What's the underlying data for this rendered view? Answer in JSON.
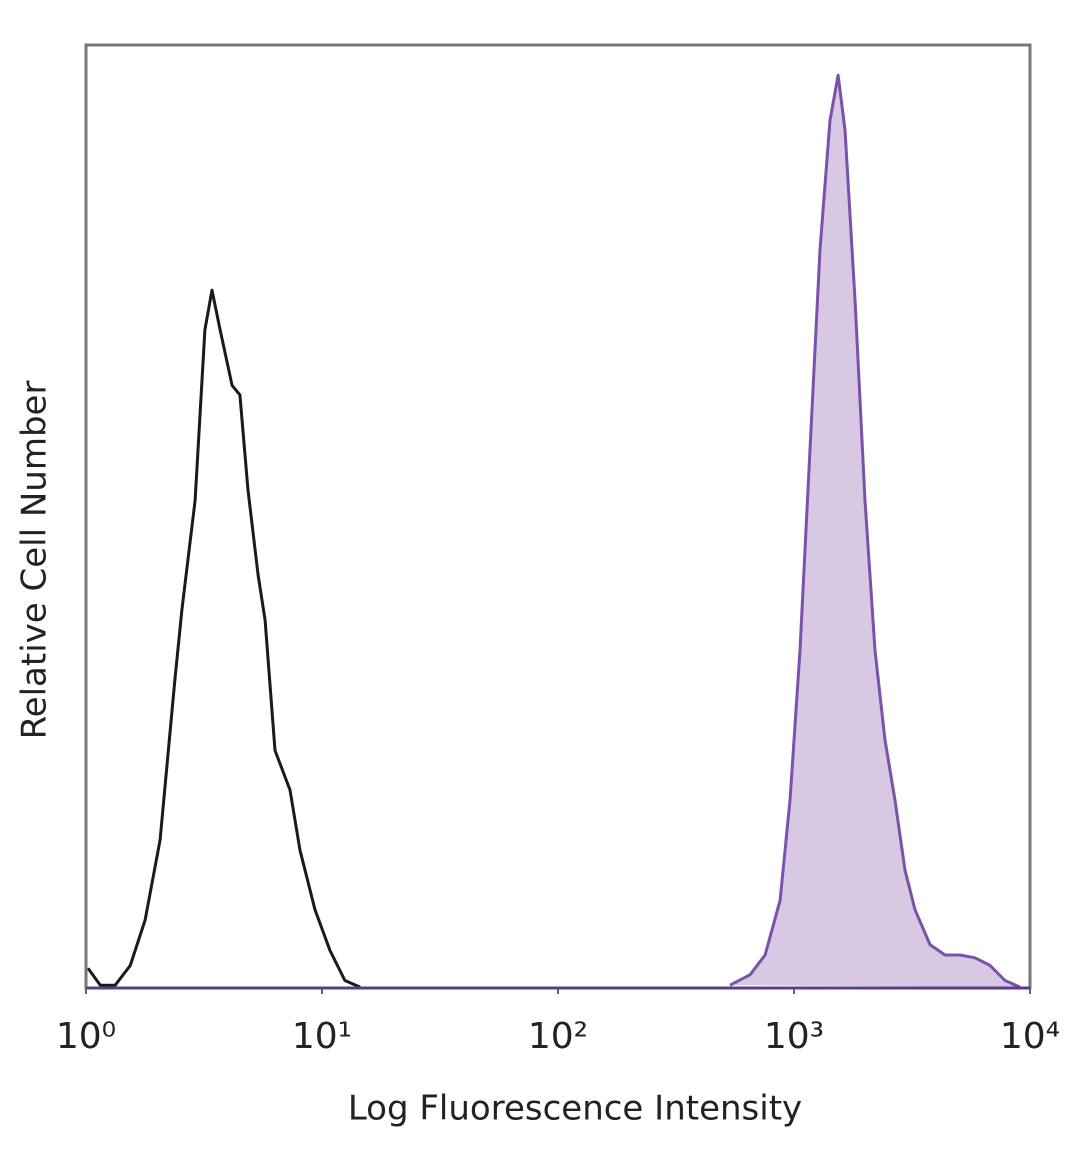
{
  "chart_data": {
    "type": "line",
    "xlabel": "Log Fluorescence Intensity",
    "ylabel": "Relative Cell Number",
    "xscale": "log",
    "xlim": [
      1,
      10000
    ],
    "xticks": [
      {
        "value": 1,
        "label": "10⁰"
      },
      {
        "value": 10,
        "label": "10¹"
      },
      {
        "value": 100,
        "label": "10²"
      },
      {
        "value": 1000,
        "label": "10³"
      },
      {
        "value": 10000,
        "label": "10⁴"
      }
    ],
    "ylim": [
      0,
      100
    ],
    "yticks": [],
    "series": [
      {
        "color": "#1a1a1a",
        "filled": false,
        "x": [
          1.02,
          1.15,
          1.33,
          1.54,
          1.78,
          2.06,
          2.38,
          2.55,
          2.9,
          3.19,
          3.42,
          3.7,
          4.16,
          4.49,
          4.86,
          5.36,
          5.74,
          6.32,
          7.32,
          8.07,
          9.34,
          10.8,
          12.5,
          14.5
        ],
        "values": [
          2.1,
          0.3,
          0.3,
          2.4,
          7.2,
          15.7,
          32.7,
          40.1,
          51.7,
          69.8,
          74.0,
          69.8,
          63.9,
          62.9,
          52.8,
          43.8,
          39.0,
          25.2,
          21.0,
          14.6,
          8.3,
          4.0,
          0.8,
          0.1
        ]
      },
      {
        "color": "#7b52a8",
        "filled": true,
        "fill": "#d9c8e3",
        "x": [
          535.6,
          651,
          754,
          873,
          962,
          1060,
          1169,
          1289,
          1421,
          1537,
          1645,
          1814,
          2000,
          2204,
          2430,
          2679,
          2953,
          3256,
          3770,
          4364,
          5051,
          5847,
          6768,
          7834,
          9070
        ],
        "values": [
          0.3,
          1.4,
          3.5,
          9.3,
          19.9,
          35.8,
          57.1,
          78.3,
          92.0,
          96.8,
          91.0,
          73.0,
          51.7,
          35.8,
          26.3,
          19.9,
          12.5,
          8.3,
          4.6,
          3.5,
          3.5,
          3.2,
          2.4,
          0.8,
          0.1
        ]
      }
    ]
  }
}
